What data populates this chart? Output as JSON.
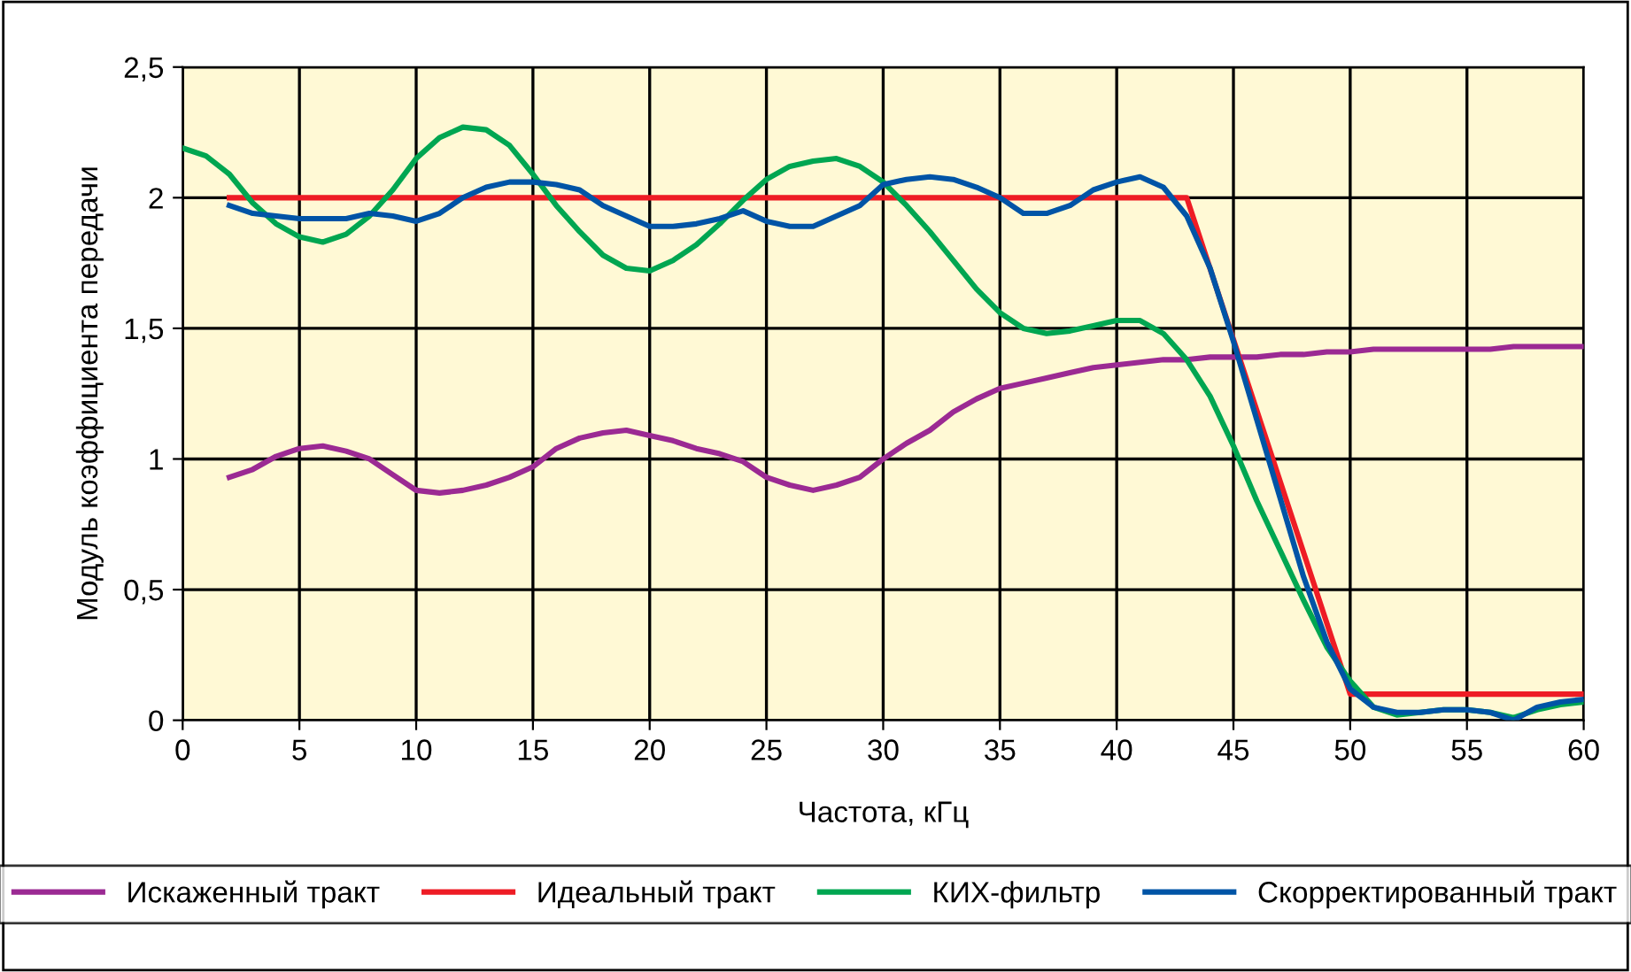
{
  "chart_data": {
    "type": "line",
    "xlabel": "Частота, кГц",
    "ylabel": "Модуль коэффициента передачи",
    "xlim": [
      0,
      60
    ],
    "xticks": [
      0,
      5,
      10,
      15,
      20,
      25,
      30,
      35,
      40,
      45,
      50,
      55,
      60
    ],
    "ylim": [
      0,
      2.5
    ],
    "yticks": [
      {
        "value": 0,
        "label": "0"
      },
      {
        "value": 0.5,
        "label": "0,5"
      },
      {
        "value": 1,
        "label": "1"
      },
      {
        "value": 1.5,
        "label": "1,5"
      },
      {
        "value": 2,
        "label": "2"
      },
      {
        "value": 2.5,
        "label": "2,5"
      }
    ],
    "grid": true,
    "legend": "bottom",
    "marker": "none",
    "line_style": "solid",
    "series": [
      {
        "name": "Искаженный тракт",
        "color": "#9b2a93",
        "x": [
          2,
          3,
          4,
          5,
          6,
          7,
          8,
          9,
          10,
          11,
          12,
          13,
          14,
          15,
          16,
          17,
          18,
          19,
          20,
          21,
          22,
          23,
          24,
          25,
          26,
          27,
          28,
          29,
          30,
          31,
          32,
          33,
          34,
          35,
          36,
          37,
          38,
          39,
          40,
          41,
          42,
          43,
          44,
          45,
          46,
          47,
          48,
          49,
          50,
          51,
          52,
          53,
          54,
          55,
          56,
          57,
          58,
          59,
          60
        ],
        "values": [
          0.93,
          0.96,
          1.01,
          1.04,
          1.05,
          1.03,
          1.0,
          0.94,
          0.88,
          0.87,
          0.88,
          0.9,
          0.93,
          0.97,
          1.04,
          1.08,
          1.1,
          1.11,
          1.09,
          1.07,
          1.04,
          1.02,
          0.99,
          0.93,
          0.9,
          0.88,
          0.9,
          0.93,
          1.0,
          1.06,
          1.11,
          1.18,
          1.23,
          1.27,
          1.29,
          1.31,
          1.33,
          1.35,
          1.36,
          1.37,
          1.38,
          1.38,
          1.39,
          1.39,
          1.39,
          1.4,
          1.4,
          1.41,
          1.41,
          1.42,
          1.42,
          1.42,
          1.42,
          1.42,
          1.42,
          1.43,
          1.43,
          1.43,
          1.43
        ]
      },
      {
        "name": "Идеальный тракт",
        "color": "#ee1c25",
        "x": [
          2,
          43,
          50,
          60
        ],
        "values": [
          2,
          2,
          0.1,
          0.1
        ]
      },
      {
        "name": "КИХ-фильтр",
        "color": "#00a651",
        "x": [
          0,
          1,
          2,
          3,
          4,
          5,
          6,
          7,
          8,
          9,
          10,
          11,
          12,
          13,
          14,
          15,
          16,
          17,
          18,
          19,
          20,
          21,
          22,
          23,
          24,
          25,
          26,
          27,
          28,
          29,
          30,
          31,
          32,
          33,
          34,
          35,
          36,
          37,
          38,
          39,
          40,
          41,
          42,
          43,
          44,
          45,
          46,
          47,
          48,
          49,
          50,
          51,
          52,
          53,
          54,
          55,
          56,
          57,
          58,
          59,
          60
        ],
        "values": [
          2.19,
          2.16,
          2.09,
          1.98,
          1.9,
          1.85,
          1.83,
          1.86,
          1.93,
          2.03,
          2.15,
          2.23,
          2.27,
          2.26,
          2.2,
          2.09,
          1.97,
          1.87,
          1.78,
          1.73,
          1.72,
          1.76,
          1.82,
          1.9,
          1.99,
          2.07,
          2.12,
          2.14,
          2.15,
          2.12,
          2.06,
          1.97,
          1.87,
          1.76,
          1.65,
          1.56,
          1.5,
          1.48,
          1.49,
          1.51,
          1.53,
          1.53,
          1.48,
          1.38,
          1.24,
          1.05,
          0.84,
          0.65,
          0.46,
          0.28,
          0.15,
          0.05,
          0.02,
          0.03,
          0.04,
          0.04,
          0.03,
          0.01,
          0.04,
          0.06,
          0.07
        ]
      },
      {
        "name": "Скорректированный тракт",
        "color": "#0054a6",
        "x": [
          2,
          3,
          4,
          5,
          6,
          7,
          8,
          9,
          10,
          11,
          12,
          13,
          14,
          15,
          16,
          17,
          18,
          19,
          20,
          21,
          22,
          23,
          24,
          25,
          26,
          27,
          28,
          29,
          30,
          31,
          32,
          33,
          34,
          35,
          36,
          37,
          38,
          39,
          40,
          41,
          42,
          43,
          44,
          45,
          46,
          47,
          48,
          49,
          50,
          51,
          52,
          53,
          54,
          55,
          56,
          57,
          58,
          59,
          60
        ],
        "values": [
          1.97,
          1.94,
          1.93,
          1.92,
          1.92,
          1.92,
          1.94,
          1.93,
          1.91,
          1.94,
          2.0,
          2.04,
          2.06,
          2.06,
          2.05,
          2.03,
          1.97,
          1.93,
          1.89,
          1.89,
          1.9,
          1.92,
          1.95,
          1.91,
          1.89,
          1.89,
          1.93,
          1.97,
          2.05,
          2.07,
          2.08,
          2.07,
          2.04,
          2.0,
          1.94,
          1.94,
          1.97,
          2.03,
          2.06,
          2.08,
          2.04,
          1.93,
          1.73,
          1.45,
          1.15,
          0.85,
          0.55,
          0.3,
          0.12,
          0.05,
          0.03,
          0.03,
          0.04,
          0.04,
          0.03,
          0.0,
          0.05,
          0.07,
          0.08
        ]
      }
    ]
  }
}
